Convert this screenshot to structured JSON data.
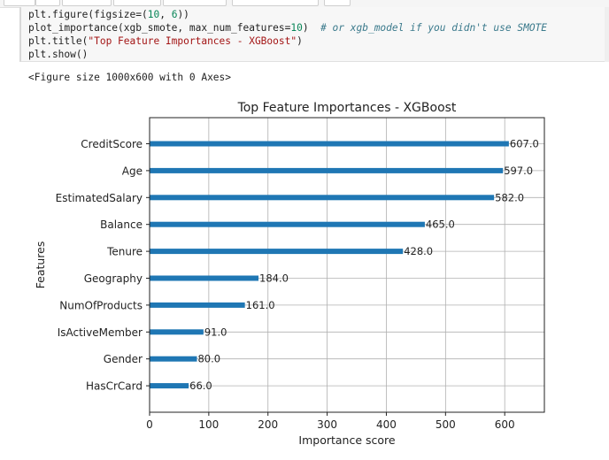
{
  "code_cell": {
    "lines": [
      [
        {
          "t": "plt.figure(figsize=("
        },
        {
          "t": "10",
          "c": "num"
        },
        {
          "t": ", "
        },
        {
          "t": "6",
          "c": "num"
        },
        {
          "t": "))"
        }
      ],
      [
        {
          "t": "plot_importance(xgb_smote, max_num_features="
        },
        {
          "t": "10",
          "c": "num"
        },
        {
          "t": ")  "
        },
        {
          "t": "# or xgb_model if you didn't use SMOTE",
          "c": "cmt"
        }
      ],
      [
        {
          "t": "plt.title("
        },
        {
          "t": "\"Top Feature Importances - XGBoost\"",
          "c": "str"
        },
        {
          "t": ")"
        }
      ],
      [
        {
          "t": "plt.show()"
        }
      ]
    ]
  },
  "output": {
    "figure_text": "<Figure size 1000x600 with 0 Axes>"
  },
  "chart_data": {
    "type": "bar",
    "orientation": "horizontal",
    "title": "Top Feature Importances - XGBoost",
    "xlabel": "Importance score",
    "ylabel": "Features",
    "categories": [
      "CreditScore",
      "Age",
      "EstimatedSalary",
      "Balance",
      "Tenure",
      "Geography",
      "NumOfProducts",
      "IsActiveMember",
      "Gender",
      "HasCrCard"
    ],
    "values": [
      607.0,
      597.0,
      582.0,
      465.0,
      428.0,
      184.0,
      161.0,
      91.0,
      80.0,
      66.0
    ],
    "value_labels": [
      "607.0",
      "597.0",
      "582.0",
      "465.0",
      "428.0",
      "184.0",
      "161.0",
      "91.0",
      "80.0",
      "66.0"
    ],
    "xlim": [
      0,
      667
    ],
    "xticks": [
      0,
      100,
      200,
      300,
      400,
      500,
      600
    ],
    "xtick_labels": [
      "0",
      "100",
      "200",
      "300",
      "400",
      "500",
      "600"
    ],
    "grid": true,
    "bar_color": "#1f77b4"
  }
}
